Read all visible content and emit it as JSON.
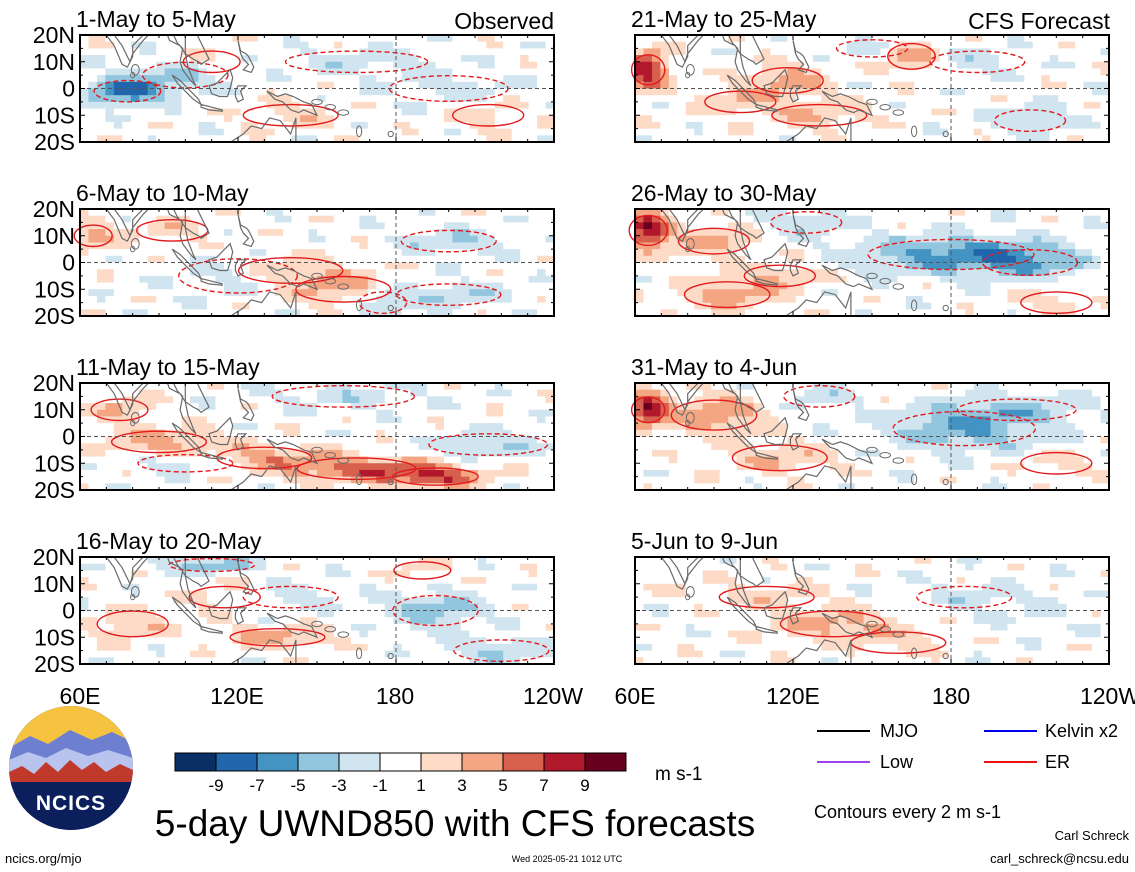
{
  "chart_data": {
    "type": "heatmap",
    "title": "5-day UWND850 with CFS forecasts",
    "variable": "UWND850",
    "units": "m s-1",
    "contour_note": "Contours every 2 m s-1",
    "labels": {
      "observed": "Observed",
      "forecast": "CFS Forecast"
    },
    "x_ticks": [
      "60E",
      "120E",
      "180",
      "120W"
    ],
    "y_ticks": [
      "20N",
      "10N",
      "0",
      "10S",
      "20S"
    ],
    "xlim": [
      "60E",
      "120W"
    ],
    "ylim": [
      "20S",
      "20N"
    ],
    "colorbar": {
      "tick_labels": [
        "-9",
        "-7",
        "-5",
        "-3",
        "-1",
        "1",
        "3",
        "5",
        "7",
        "9"
      ],
      "colors": [
        "#0a2f66",
        "#2166ac",
        "#4393c3",
        "#92c5de",
        "#d1e5f0",
        "#ffffff",
        "#fddbc7",
        "#f4a582",
        "#d6604d",
        "#b2182b",
        "#67001f"
      ]
    },
    "panels": [
      {
        "period": "1-May to 5-May",
        "column": "observed",
        "features": [
          [
            78,
            -1,
            -8,
            14,
            5
          ],
          [
            100,
            5,
            -3,
            18,
            6
          ],
          [
            165,
            10,
            -2,
            30,
            5
          ],
          [
            140,
            -10,
            2,
            20,
            5
          ],
          [
            110,
            10,
            2,
            12,
            5
          ],
          [
            200,
            0,
            -2,
            25,
            6
          ],
          [
            215,
            -10,
            2,
            15,
            5
          ]
        ]
      },
      {
        "period": "6-May to 10-May",
        "column": "observed",
        "features": [
          [
            65,
            10,
            4,
            8,
            5
          ],
          [
            95,
            12,
            2,
            15,
            5
          ],
          [
            140,
            -3,
            3,
            22,
            6
          ],
          [
            160,
            -10,
            4,
            20,
            6
          ],
          [
            120,
            -5,
            -2,
            25,
            8
          ],
          [
            200,
            8,
            -3,
            20,
            5
          ],
          [
            200,
            -12,
            -3,
            22,
            5
          ],
          [
            175,
            -15,
            -4,
            10,
            5
          ]
        ]
      },
      {
        "period": "11-May to 15-May",
        "column": "observed",
        "features": [
          [
            90,
            -2,
            4,
            20,
            5
          ],
          [
            130,
            -8,
            4,
            20,
            5
          ],
          [
            165,
            -12,
            6,
            25,
            5
          ],
          [
            195,
            -15,
            7,
            18,
            4
          ],
          [
            75,
            10,
            3,
            12,
            5
          ],
          [
            215,
            -3,
            -3,
            25,
            5
          ],
          [
            160,
            15,
            -2,
            30,
            5
          ],
          [
            100,
            -10,
            -2,
            20,
            4
          ]
        ]
      },
      {
        "period": "16-May to 20-May",
        "column": "observed",
        "features": [
          [
            80,
            -5,
            3,
            15,
            6
          ],
          [
            135,
            -10,
            4,
            20,
            4
          ],
          [
            115,
            5,
            2,
            15,
            5
          ],
          [
            195,
            0,
            -4,
            18,
            7
          ],
          [
            110,
            17,
            -4,
            18,
            3
          ],
          [
            140,
            5,
            -2,
            20,
            5
          ],
          [
            190,
            15,
            2,
            12,
            4
          ],
          [
            220,
            -15,
            -3,
            20,
            5
          ]
        ]
      },
      {
        "period": "21-May to 25-May",
        "column": "forecast",
        "features": [
          [
            65,
            7,
            9,
            7,
            7
          ],
          [
            118,
            3,
            4,
            15,
            6
          ],
          [
            165,
            12,
            5,
            10,
            6
          ],
          [
            130,
            -10,
            3,
            20,
            5
          ],
          [
            100,
            -5,
            3,
            15,
            5
          ],
          [
            190,
            10,
            -2,
            20,
            5
          ],
          [
            210,
            -12,
            -3,
            15,
            5
          ],
          [
            150,
            15,
            -2,
            15,
            4
          ]
        ]
      },
      {
        "period": "26-May to 30-May",
        "column": "forecast",
        "features": [
          [
            65,
            12,
            9,
            8,
            7
          ],
          [
            90,
            8,
            4,
            15,
            6
          ],
          [
            95,
            -12,
            4,
            18,
            6
          ],
          [
            180,
            3,
            -6,
            35,
            7
          ],
          [
            210,
            0,
            -4,
            20,
            6
          ],
          [
            115,
            -5,
            3,
            15,
            5
          ],
          [
            125,
            15,
            -3,
            15,
            5
          ],
          [
            220,
            -15,
            2,
            15,
            5
          ]
        ]
      },
      {
        "period": "31-May to 4-Jun",
        "column": "forecast",
        "features": [
          [
            65,
            10,
            9,
            7,
            6
          ],
          [
            90,
            8,
            5,
            18,
            7
          ],
          [
            115,
            -8,
            3,
            20,
            6
          ],
          [
            185,
            3,
            -5,
            30,
            8
          ],
          [
            205,
            10,
            -3,
            25,
            5
          ],
          [
            130,
            15,
            -2,
            15,
            5
          ],
          [
            220,
            -10,
            2,
            15,
            5
          ]
        ]
      },
      {
        "period": "5-Jun to 9-Jun",
        "column": "forecast",
        "features": [
          [
            135,
            -5,
            4,
            22,
            6
          ],
          [
            110,
            5,
            2,
            20,
            5
          ],
          [
            160,
            -12,
            2,
            20,
            5
          ],
          [
            185,
            5,
            -2,
            20,
            5
          ],
          [
            210,
            0,
            -1,
            20,
            8
          ],
          [
            75,
            10,
            1,
            15,
            5
          ]
        ]
      }
    ],
    "legend": [
      {
        "label": "MJO",
        "color": "#000000"
      },
      {
        "label": "Kelvin x2",
        "color": "#0000ee"
      },
      {
        "label": "Low",
        "color": "#a040ee"
      },
      {
        "label": "ER",
        "color": "#ee1111"
      }
    ]
  },
  "footer": {
    "site": "ncics.org/mjo",
    "timestamp": "Wed 2025-05-21 1012 UTC",
    "author": "Carl Schreck",
    "email": "carl_schreck@ncsu.edu"
  },
  "logo": {
    "text": "NCICS"
  }
}
